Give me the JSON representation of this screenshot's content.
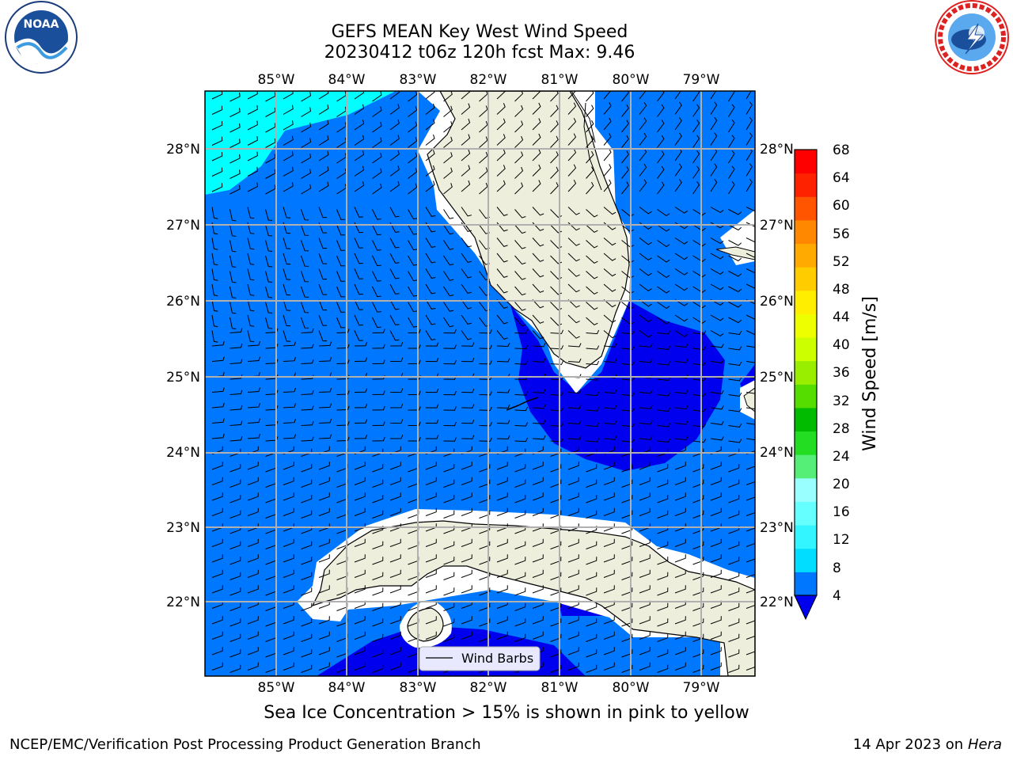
{
  "title_line1": "GEFS MEAN Key West Wind Speed",
  "title_line2": "20230412 t06z 120h fcst   Max: 9.46",
  "lon_labels": [
    "85°W",
    "84°W",
    "83°W",
    "82°W",
    "81°W",
    "80°W",
    "79°W"
  ],
  "lat_labels": [
    "28°N",
    "27°N",
    "26°N",
    "25°N",
    "24°N",
    "23°N",
    "22°N"
  ],
  "colorbar": {
    "label": "Wind Speed [m/s]",
    "ticks": [
      "4",
      "8",
      "12",
      "16",
      "20",
      "24",
      "28",
      "32",
      "36",
      "40",
      "44",
      "48",
      "52",
      "56",
      "60",
      "64",
      "68"
    ],
    "colors": [
      "#0077ff",
      "#00ddff",
      "#33f5ff",
      "#66ffff",
      "#99ffff",
      "#55ee77",
      "#22dd22",
      "#00bb00",
      "#55dd00",
      "#99ee00",
      "#ccff00",
      "#eeff00",
      "#ffee00",
      "#ffcc00",
      "#ffaa00",
      "#ff8800",
      "#ff5500",
      "#ff2200",
      "#ff0000"
    ],
    "extend_color": "#0000ee"
  },
  "legend_label": "Wind Barbs",
  "caption": "Sea Ice Concentration > 15% is shown in pink to yellow",
  "footer_left": "NCEP/EMC/Verification Post Processing Product Generation Branch",
  "footer_date": "14 Apr 2023 on",
  "footer_machine": "Hera",
  "logo_left_text": "NOAA",
  "logo_right_text": "NATIONAL WEATHER SERVICE",
  "colors": {
    "ocean_4_8": "#0077ff",
    "ocean_lt4": "#0000ee",
    "ocean_8_12": "#00ffff",
    "land": "#eeeedd",
    "grid": "#b0b0b0"
  }
}
